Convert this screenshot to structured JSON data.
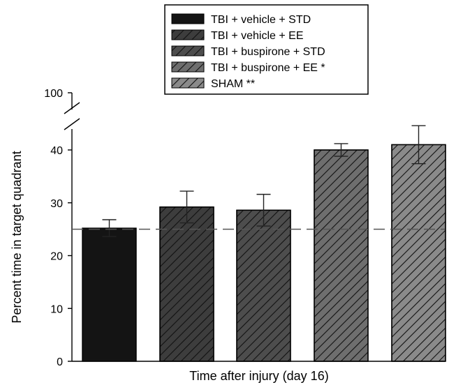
{
  "chart_data": {
    "type": "bar",
    "xlabel": "Time after injury (day 16)",
    "ylabel": "Percent time in target quadrant",
    "ylim": [
      0,
      45
    ],
    "yticks": [
      0,
      10,
      20,
      30,
      40
    ],
    "break_tick": "100",
    "reference_line": 25,
    "grid": false,
    "legend_position": "top-center",
    "series": [
      {
        "name": "TBI + vehicle + STD",
        "value": 25.2,
        "error": 1.6,
        "fill": "#141414",
        "hatch": false
      },
      {
        "name": "TBI + vehicle + EE",
        "value": 29.2,
        "error": 3.0,
        "fill": "#3d3d3d",
        "hatch": true
      },
      {
        "name": "TBI + buspirone + STD",
        "value": 28.6,
        "error": 3.0,
        "fill": "#4d4d4d",
        "hatch": true
      },
      {
        "name": "TBI + buspirone + EE *",
        "value": 40.0,
        "error": 1.2,
        "fill": "#6e6e6e",
        "hatch": true
      },
      {
        "name": "SHAM **",
        "value": 41.0,
        "error": 3.6,
        "fill": "#8a8a8a",
        "hatch": true
      }
    ]
  }
}
